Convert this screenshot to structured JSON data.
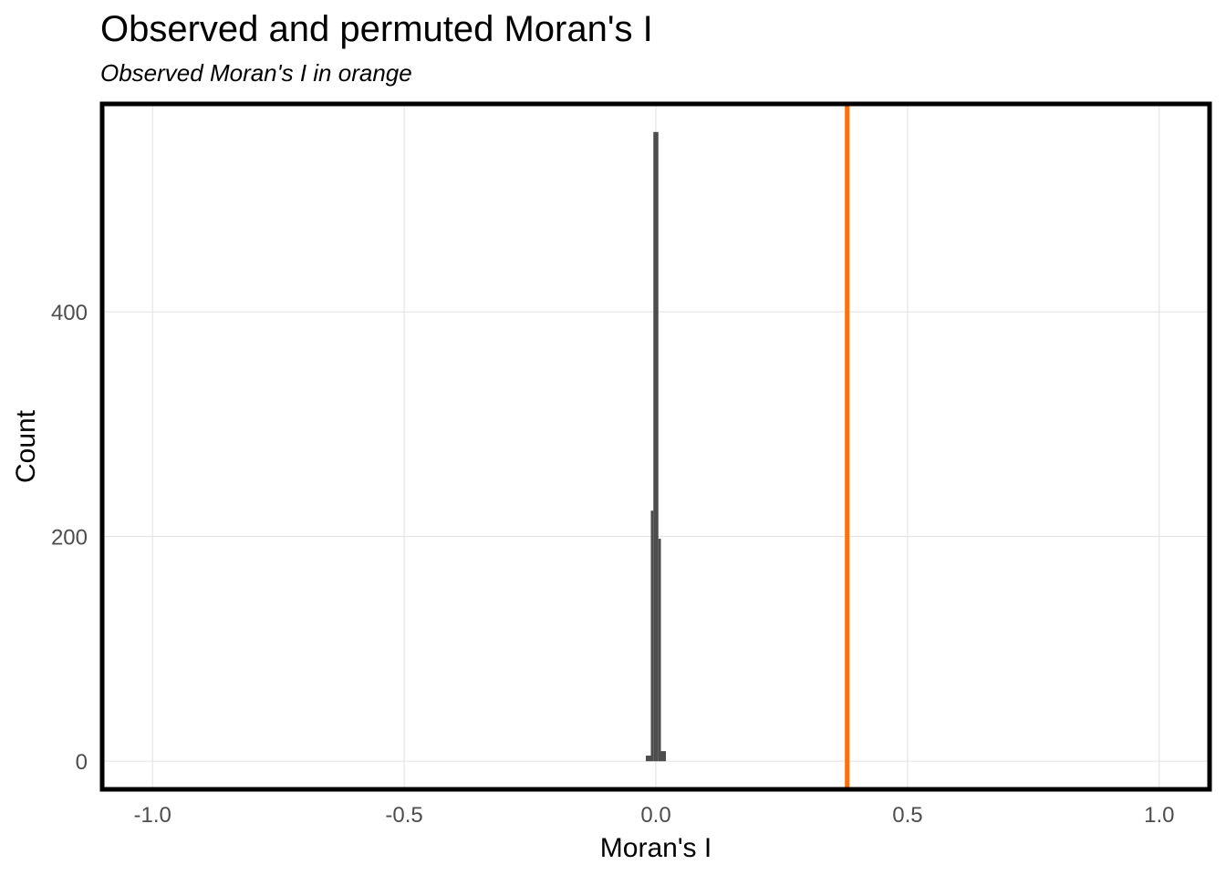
{
  "chart_data": {
    "type": "bar",
    "title": "Observed and permuted Moran's I",
    "subtitle": "Observed Moran's I in orange",
    "xlabel": "Moran's I",
    "ylabel": "Count",
    "xlim": [
      -1.1,
      1.1
    ],
    "ylim": [
      -25,
      585
    ],
    "x_ticks": [
      -1.0,
      -0.5,
      0.0,
      0.5,
      1.0
    ],
    "x_tick_labels": [
      "-1.0",
      "-0.5",
      "0.0",
      "0.5",
      "1.0"
    ],
    "y_ticks": [
      0,
      200,
      400
    ],
    "y_tick_labels": [
      "0",
      "200",
      "400"
    ],
    "grid": true,
    "bar_color": "#4d4d4d",
    "observed_line_color": "#ff6f0f",
    "observed_value": 0.38,
    "bins": [
      {
        "x0": -0.02,
        "x1": -0.01,
        "count": 5
      },
      {
        "x0": -0.01,
        "x1": -0.005,
        "count": 223
      },
      {
        "x0": -0.005,
        "x1": 0.005,
        "count": 560
      },
      {
        "x0": 0.005,
        "x1": 0.01,
        "count": 198
      },
      {
        "x0": 0.01,
        "x1": 0.02,
        "count": 9
      }
    ]
  }
}
